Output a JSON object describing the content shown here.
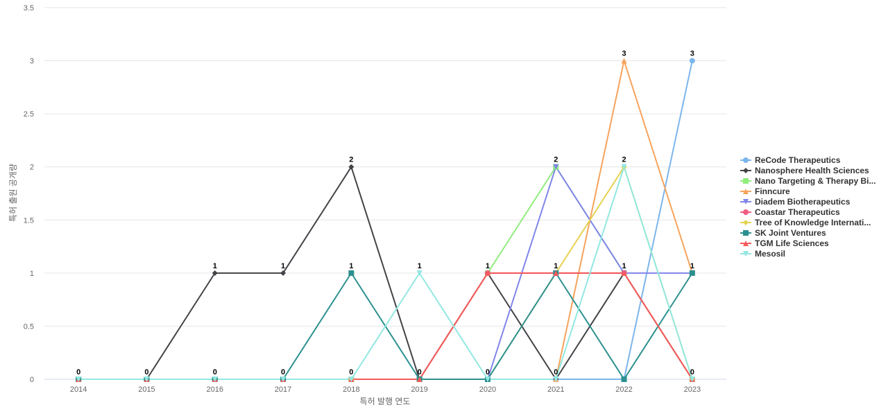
{
  "chart_data": {
    "type": "line",
    "title": "",
    "xlabel": "특허 발행 연도",
    "ylabel": "특허 출원 공개량",
    "x": [
      "2014",
      "2015",
      "2016",
      "2017",
      "2018",
      "2019",
      "2020",
      "2021",
      "2022",
      "2023"
    ],
    "ylim": [
      0,
      3.5
    ],
    "yticks": [
      "0",
      "0.5",
      "1",
      "1.5",
      "2",
      "2.5",
      "3",
      "3.5"
    ],
    "grid": true,
    "legend_position": "right",
    "series": [
      {
        "name": "ReCode Therapeutics",
        "color": "#7cb5ec",
        "marker": "circle",
        "values": [
          0,
          0,
          0,
          0,
          0,
          0,
          0,
          0,
          0,
          3
        ]
      },
      {
        "name": "Nanosphere Health Sciences",
        "color": "#434348",
        "marker": "diamond",
        "values": [
          0,
          0,
          1,
          1,
          2,
          0,
          1,
          0,
          1,
          0
        ]
      },
      {
        "name": "Nano Targeting & Therapy Bi...",
        "color": "#90ed7d",
        "marker": "square",
        "values": [
          0,
          0,
          0,
          0,
          0,
          0,
          1,
          2,
          1,
          0
        ]
      },
      {
        "name": "Finncure",
        "color": "#f7a35c",
        "marker": "triangle",
        "values": [
          0,
          0,
          0,
          0,
          0,
          0,
          0,
          0,
          3,
          1
        ]
      },
      {
        "name": "Diadem Biotherapeutics",
        "color": "#8085e9",
        "marker": "triangle-down",
        "values": [
          0,
          0,
          0,
          0,
          0,
          0,
          0,
          2,
          1,
          1
        ]
      },
      {
        "name": "Coastar Therapeutics",
        "color": "#f15c80",
        "marker": "circle",
        "values": [
          0,
          0,
          0,
          0,
          0,
          0,
          1,
          1,
          1,
          0
        ]
      },
      {
        "name": "Tree of Knowledge Internati...",
        "color": "#e4d354",
        "marker": "diamond",
        "values": [
          0,
          0,
          0,
          0,
          0,
          0,
          0,
          1,
          2,
          0
        ]
      },
      {
        "name": "SK Joint Ventures",
        "color": "#2b908f",
        "marker": "square",
        "values": [
          0,
          0,
          0,
          0,
          1,
          0,
          0,
          1,
          0,
          1
        ]
      },
      {
        "name": "TGM Life Sciences",
        "color": "#f45b5b",
        "marker": "triangle",
        "values": [
          0,
          0,
          0,
          0,
          0,
          0,
          1,
          1,
          1,
          0
        ]
      },
      {
        "name": "Mesosil",
        "color": "#91e8e1",
        "marker": "triangle-down",
        "values": [
          0,
          0,
          0,
          0,
          0,
          1,
          0,
          0,
          2,
          0
        ]
      }
    ],
    "data_labels": [
      "0",
      "0",
      "1",
      "1",
      "2",
      "1",
      "1",
      "2",
      "3",
      "3"
    ],
    "data_label_upper": [
      "0",
      "0",
      "1",
      "1",
      "1",
      "1",
      "1",
      "1",
      "2",
      "1"
    ],
    "data_label_lower": [
      "",
      "",
      "0",
      "0",
      "0",
      "0",
      "0",
      "0",
      "1",
      "0"
    ],
    "gridline_color": "#e6e6e6",
    "axis_line_color": "#ccd6eb"
  }
}
